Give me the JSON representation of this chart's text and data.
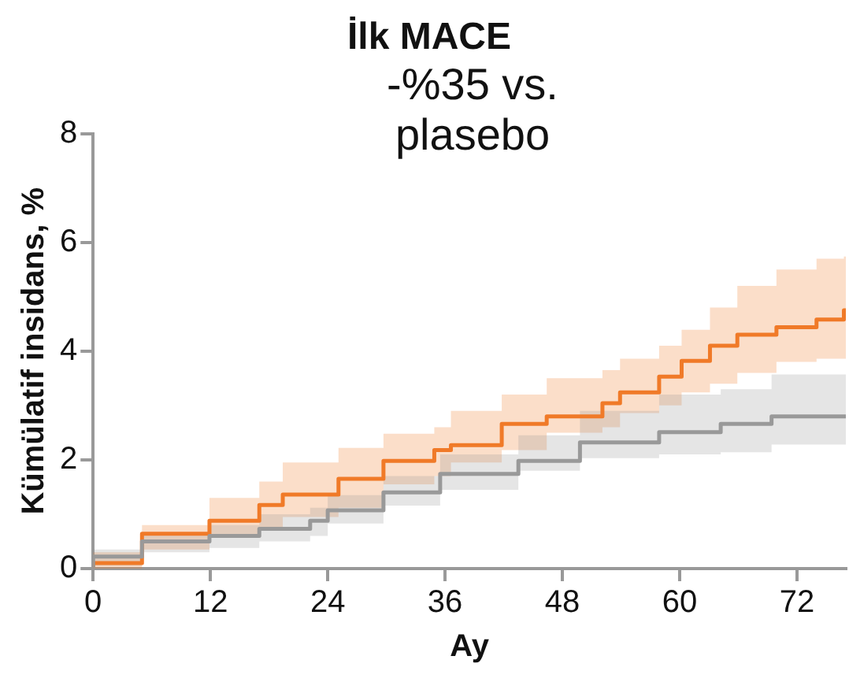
{
  "chart_data": {
    "type": "step",
    "title": "İlk MACE",
    "xlabel": "Ay",
    "ylabel": "Kümülatif insidans, %",
    "annotations": [
      "-%35 vs. plasebo"
    ],
    "xlim": [
      0,
      77
    ],
    "xticks": [
      0,
      12,
      24,
      36,
      48,
      60,
      72
    ],
    "ylim": [
      0,
      8
    ],
    "yticks": [
      0,
      2,
      4,
      6,
      8
    ],
    "grid": false,
    "legend": false,
    "marker": "none",
    "line_style": "solid",
    "series": [
      {
        "color": "#999999",
        "x": [
          0,
          5,
          11.9,
          17,
          22.2,
          24,
          29.7,
          35.5,
          43.5,
          49.8,
          57.9,
          64.2,
          69.4,
          75.1,
          77
        ],
        "values": [
          0,
          0.22,
          0.5,
          0.6,
          0.73,
          0.88,
          1.07,
          1.4,
          1.74,
          1.98,
          2.32,
          2.51,
          2.66,
          2.8,
          2.8
        ],
        "lower": [
          0,
          0.05,
          0.3,
          0.38,
          0.5,
          0.6,
          0.83,
          1.16,
          1.45,
          1.8,
          2.03,
          2.1,
          2.14,
          2.28,
          2.28
        ],
        "upper": [
          0,
          0.35,
          0.64,
          0.8,
          1.0,
          1.12,
          1.35,
          1.7,
          2.1,
          2.45,
          2.9,
          3.2,
          3.3,
          3.57,
          3.57
        ]
      },
      {
        "color": "#f07a28",
        "x": [
          0,
          5,
          11.9,
          17,
          19.4,
          25.1,
          29.7,
          34.9,
          36.6,
          41.8,
          46.4,
          52.1,
          53.9,
          57.9,
          60.2,
          63.1,
          65.9,
          69.9,
          74,
          76.8,
          77
        ],
        "values": [
          0,
          0.1,
          0.64,
          0.88,
          1.17,
          1.36,
          1.65,
          1.98,
          2.18,
          2.27,
          2.66,
          2.8,
          3.04,
          3.24,
          3.53,
          3.82,
          4.1,
          4.3,
          4.44,
          4.58,
          4.75
        ],
        "lower": [
          0,
          0,
          0.35,
          0.6,
          0.73,
          0.95,
          1.12,
          1.55,
          1.7,
          1.95,
          2.18,
          2.5,
          2.6,
          2.86,
          3.0,
          3.24,
          3.4,
          3.6,
          3.8,
          3.86,
          3.86
        ],
        "upper": [
          0,
          0.3,
          0.8,
          1.3,
          1.6,
          1.95,
          2.22,
          2.48,
          2.6,
          2.9,
          3.2,
          3.5,
          3.65,
          3.86,
          4.1,
          4.39,
          4.8,
          5.2,
          5.5,
          5.7,
          5.74
        ]
      }
    ]
  }
}
